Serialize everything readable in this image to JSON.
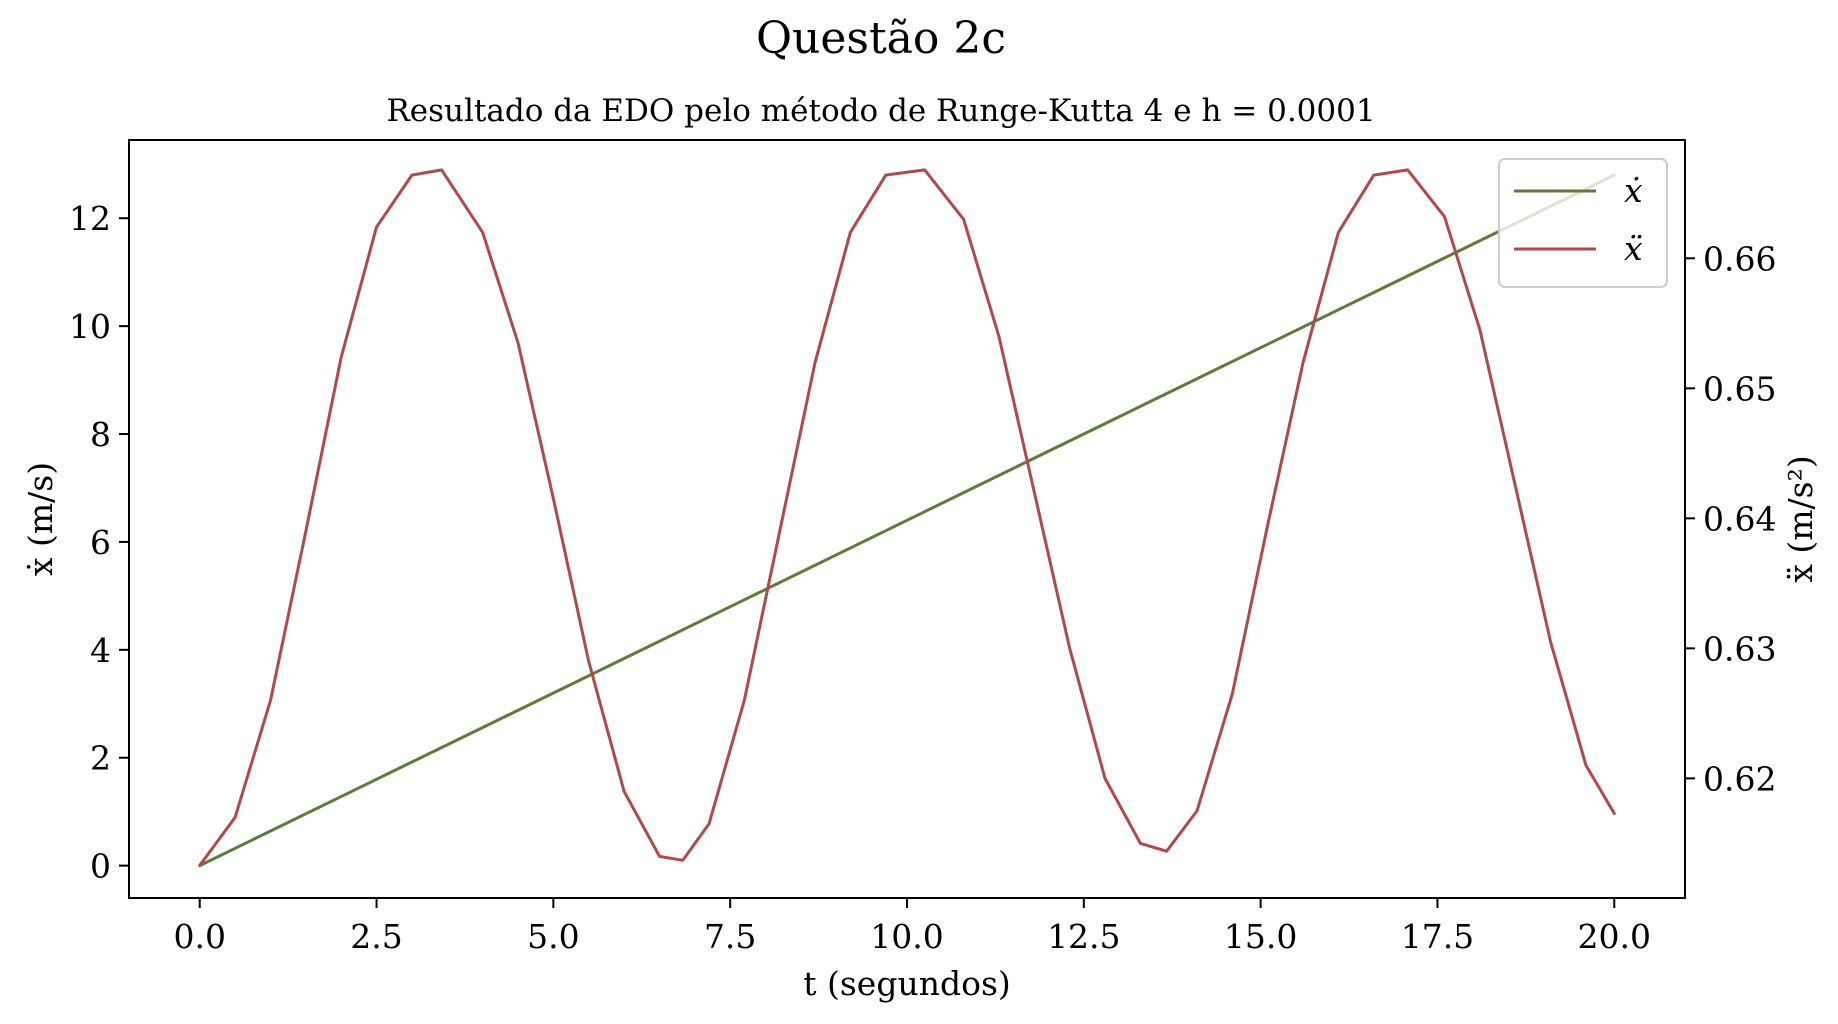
{
  "chart_data": {
    "type": "line",
    "title": "Questão 2c",
    "subtitle": "Resultado da EDO pelo método de Runge-Kutta 4 e h = 0.0001",
    "xlabel": "t (segundos)",
    "ylabel_left": "ẋ (m/s)",
    "ylabel_right": "ẍ (m/s²)",
    "xlim": [
      -1.0,
      21.0
    ],
    "ylim_left": [
      -0.6,
      13.45
    ],
    "ylim_right": [
      0.6108,
      0.6691
    ],
    "x_ticks": [
      0.0,
      2.5,
      5.0,
      7.5,
      10.0,
      12.5,
      15.0,
      17.5,
      20.0
    ],
    "x_tick_labels": [
      "0.0",
      "2.5",
      "5.0",
      "7.5",
      "10.0",
      "12.5",
      "15.0",
      "17.5",
      "20.0"
    ],
    "y_left_ticks": [
      0,
      2,
      4,
      6,
      8,
      10,
      12
    ],
    "y_left_tick_labels": [
      "0",
      "2",
      "4",
      "6",
      "8",
      "10",
      "12"
    ],
    "y_right_ticks": [
      0.62,
      0.63,
      0.64,
      0.65,
      0.66
    ],
    "y_right_tick_labels": [
      "0.62",
      "0.63",
      "0.64",
      "0.65",
      "0.66"
    ],
    "grid": false,
    "legend_position": "top-right",
    "series": [
      {
        "name": "ẋ",
        "axis": "left",
        "color": "#5f7a3a",
        "x": [
          0.0,
          2.5,
          5.0,
          7.5,
          10.0,
          12.5,
          15.0,
          17.5,
          20.0
        ],
        "y": [
          0.0,
          1.6,
          3.2,
          4.8,
          6.4,
          8.0,
          9.6,
          11.2,
          12.8
        ]
      },
      {
        "name": "ẍ",
        "axis": "right",
        "color": "#b04a4a",
        "x": [
          0.0,
          0.5,
          1.0,
          1.5,
          2.0,
          2.5,
          3.0,
          3.42,
          4.0,
          4.5,
          5.0,
          5.5,
          6.0,
          6.5,
          6.83,
          7.2,
          7.7,
          8.2,
          8.7,
          9.2,
          9.7,
          10.25,
          10.8,
          11.3,
          11.8,
          12.3,
          12.8,
          13.3,
          13.67,
          14.1,
          14.6,
          15.1,
          15.6,
          16.1,
          16.6,
          17.08,
          17.6,
          18.1,
          18.6,
          19.1,
          19.6,
          20.0
        ],
        "y": [
          0.6133,
          0.617,
          0.626,
          0.639,
          0.6524,
          0.6624,
          0.6664,
          0.6668,
          0.662,
          0.6535,
          0.6415,
          0.629,
          0.619,
          0.614,
          0.6137,
          0.6165,
          0.626,
          0.639,
          0.652,
          0.662,
          0.6664,
          0.6668,
          0.663,
          0.654,
          0.642,
          0.63,
          0.62,
          0.615,
          0.6144,
          0.6175,
          0.6265,
          0.6395,
          0.652,
          0.662,
          0.6664,
          0.6668,
          0.6632,
          0.6545,
          0.6425,
          0.6305,
          0.621,
          0.6173
        ]
      }
    ]
  }
}
